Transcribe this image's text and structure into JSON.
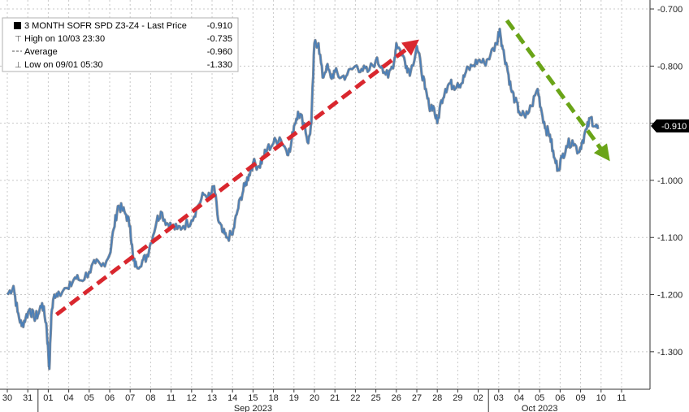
{
  "chart_data": {
    "type": "line",
    "legend": {
      "title": "3 MONTH SOFR SPD Z3-Z4 - Last Price",
      "title_value": "-0.910",
      "rows": [
        {
          "label": "High on 10/03 23:30",
          "value": "-0.735",
          "marker": "high"
        },
        {
          "label": "Average",
          "value": "-0.960",
          "marker": "average"
        },
        {
          "label": "Low on 09/01 05:30",
          "value": "-1.330",
          "marker": "low"
        }
      ]
    },
    "last_price_label": "-0.910",
    "y_axis": {
      "ylim": [
        -1.35,
        -0.69
      ],
      "ticks": [
        -0.7,
        -0.8,
        -0.9,
        -1.0,
        -1.1,
        -1.2,
        -1.3
      ],
      "tick_labels": [
        "-0.700",
        "-0.800",
        "-0.900",
        "-1.000",
        "-1.100",
        "-1.200",
        "-1.300"
      ],
      "position": "right"
    },
    "x_axis": {
      "days": [
        "30",
        "31",
        "01",
        "04",
        "05",
        "06",
        "07",
        "08",
        "11",
        "12",
        "13",
        "14",
        "15",
        "18",
        "19",
        "20",
        "21",
        "22",
        "25",
        "26",
        "27",
        "28",
        "29",
        "02",
        "03",
        "04",
        "05",
        "06",
        "09",
        "10",
        "11"
      ],
      "month_labels": [
        {
          "label": "Sep 2023",
          "day_index": 12
        },
        {
          "label": "Oct 2023",
          "day_index": 26
        }
      ]
    },
    "grid": "vertical-and-horizontal dashed",
    "series": [
      {
        "color": "#4a7fb8",
        "points": [
          [
            0.0,
            -1.2
          ],
          [
            0.3,
            -1.185
          ],
          [
            0.5,
            -1.23
          ],
          [
            0.7,
            -1.255
          ],
          [
            0.9,
            -1.24
          ],
          [
            1.1,
            -1.225
          ],
          [
            1.3,
            -1.24
          ],
          [
            1.5,
            -1.235
          ],
          [
            1.7,
            -1.215
          ],
          [
            1.9,
            -1.25
          ],
          [
            2.0,
            -1.3
          ],
          [
            2.05,
            -1.33
          ],
          [
            2.15,
            -1.235
          ],
          [
            2.3,
            -1.2
          ],
          [
            2.5,
            -1.195
          ],
          [
            3.0,
            -1.19
          ],
          [
            3.3,
            -1.17
          ],
          [
            3.6,
            -1.175
          ],
          [
            4.0,
            -1.16
          ],
          [
            4.3,
            -1.145
          ],
          [
            4.6,
            -1.15
          ],
          [
            5.0,
            -1.13
          ],
          [
            5.2,
            -1.085
          ],
          [
            5.4,
            -1.045
          ],
          [
            5.6,
            -1.05
          ],
          [
            5.8,
            -1.06
          ],
          [
            6.0,
            -1.08
          ],
          [
            6.15,
            -1.14
          ],
          [
            6.3,
            -1.15
          ],
          [
            6.6,
            -1.14
          ],
          [
            6.8,
            -1.135
          ],
          [
            7.0,
            -1.11
          ],
          [
            7.3,
            -1.07
          ],
          [
            7.5,
            -1.055
          ],
          [
            7.8,
            -1.075
          ],
          [
            8.0,
            -1.08
          ],
          [
            8.3,
            -1.085
          ],
          [
            8.6,
            -1.08
          ],
          [
            9.0,
            -1.07
          ],
          [
            9.3,
            -1.045
          ],
          [
            9.6,
            -1.025
          ],
          [
            9.9,
            -1.03
          ],
          [
            10.1,
            -1.01
          ],
          [
            10.3,
            -1.07
          ],
          [
            10.5,
            -1.09
          ],
          [
            10.7,
            -1.1
          ],
          [
            11.0,
            -1.095
          ],
          [
            11.2,
            -1.06
          ],
          [
            11.4,
            -1.03
          ],
          [
            11.6,
            -1.01
          ],
          [
            11.8,
            -0.99
          ],
          [
            12.0,
            -0.97
          ],
          [
            12.3,
            -0.975
          ],
          [
            12.5,
            -0.96
          ],
          [
            12.7,
            -0.945
          ],
          [
            13.0,
            -0.935
          ],
          [
            13.3,
            -0.925
          ],
          [
            13.6,
            -0.945
          ],
          [
            13.8,
            -0.95
          ],
          [
            14.0,
            -0.905
          ],
          [
            14.2,
            -0.88
          ],
          [
            14.5,
            -0.9
          ],
          [
            14.7,
            -0.935
          ],
          [
            14.85,
            -0.9
          ],
          [
            15.0,
            -0.76
          ],
          [
            15.2,
            -0.76
          ],
          [
            15.4,
            -0.82
          ],
          [
            15.6,
            -0.8
          ],
          [
            15.8,
            -0.82
          ],
          [
            16.0,
            -0.81
          ],
          [
            16.3,
            -0.82
          ],
          [
            16.6,
            -0.815
          ],
          [
            17.0,
            -0.8
          ],
          [
            17.3,
            -0.805
          ],
          [
            17.6,
            -0.81
          ],
          [
            18.0,
            -0.79
          ],
          [
            18.3,
            -0.8
          ],
          [
            18.6,
            -0.82
          ],
          [
            18.9,
            -0.79
          ],
          [
            19.0,
            -0.76
          ],
          [
            19.3,
            -0.78
          ],
          [
            19.5,
            -0.8
          ],
          [
            19.7,
            -0.81
          ],
          [
            20.0,
            -0.765
          ],
          [
            20.2,
            -0.8
          ],
          [
            20.4,
            -0.84
          ],
          [
            20.6,
            -0.87
          ],
          [
            20.8,
            -0.87
          ],
          [
            21.0,
            -0.9
          ],
          [
            21.2,
            -0.86
          ],
          [
            21.4,
            -0.84
          ],
          [
            21.6,
            -0.83
          ],
          [
            21.8,
            -0.835
          ],
          [
            22.0,
            -0.83
          ],
          [
            22.2,
            -0.83
          ],
          [
            22.4,
            -0.81
          ],
          [
            22.7,
            -0.8
          ],
          [
            23.0,
            -0.79
          ],
          [
            23.3,
            -0.795
          ],
          [
            23.6,
            -0.78
          ],
          [
            23.9,
            -0.76
          ],
          [
            24.05,
            -0.735
          ],
          [
            24.2,
            -0.77
          ],
          [
            24.4,
            -0.8
          ],
          [
            24.6,
            -0.84
          ],
          [
            24.8,
            -0.86
          ],
          [
            25.0,
            -0.88
          ],
          [
            25.3,
            -0.89
          ],
          [
            25.6,
            -0.87
          ],
          [
            25.9,
            -0.84
          ],
          [
            26.1,
            -0.88
          ],
          [
            26.3,
            -0.91
          ],
          [
            26.5,
            -0.92
          ],
          [
            26.7,
            -0.96
          ],
          [
            26.9,
            -0.98
          ],
          [
            27.1,
            -0.96
          ],
          [
            27.3,
            -0.94
          ],
          [
            27.6,
            -0.93
          ],
          [
            27.9,
            -0.95
          ],
          [
            28.1,
            -0.93
          ],
          [
            28.3,
            -0.91
          ],
          [
            28.5,
            -0.89
          ],
          [
            28.7,
            -0.905
          ],
          [
            28.85,
            -0.91
          ]
        ]
      }
    ],
    "annotations": [
      {
        "type": "trend-arrow",
        "color": "#d9272e",
        "from": [
          2.4,
          -1.235
        ],
        "to": [
          19.8,
          -0.762
        ]
      },
      {
        "type": "trend-arrow",
        "color": "#6aa418",
        "from": [
          24.4,
          -0.72
        ],
        "to": [
          29.2,
          -0.955
        ]
      }
    ]
  }
}
